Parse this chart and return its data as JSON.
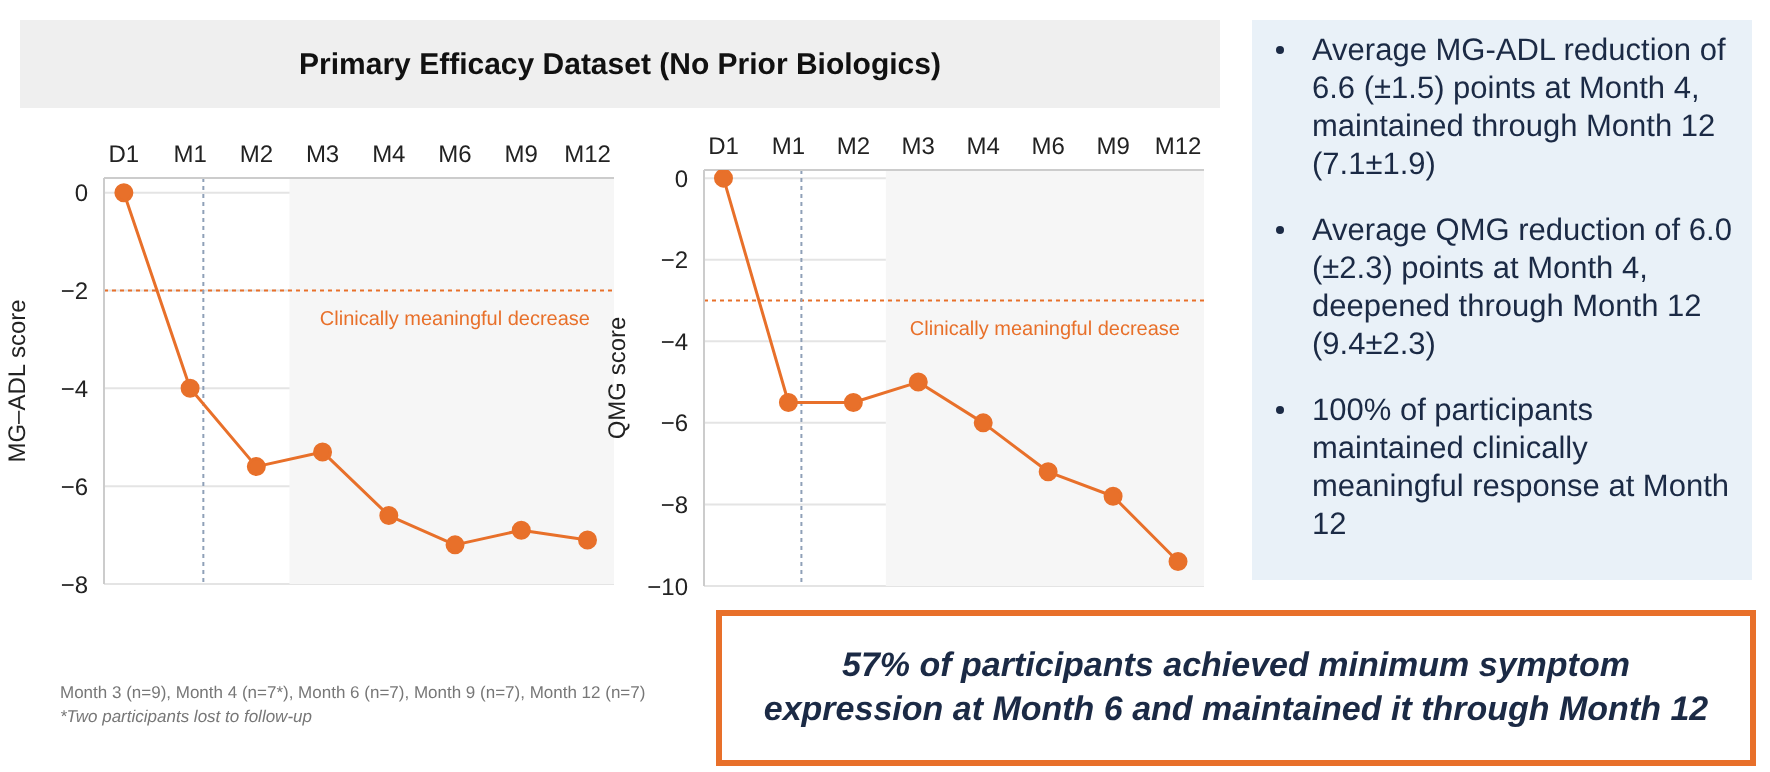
{
  "chart_data": [
    {
      "type": "line",
      "title": "Primary Efficacy Dataset (No Prior Biologics)",
      "ylabel": "MG–ADL score",
      "categories": [
        "D1",
        "M1",
        "M2",
        "M3",
        "M4",
        "M6",
        "M9",
        "M12"
      ],
      "series": [
        {
          "color": "#e8702a",
          "values": [
            0,
            -4.0,
            -5.6,
            -5.3,
            -6.6,
            -7.2,
            -6.9,
            -7.1
          ]
        }
      ],
      "ylim": [
        -8,
        0.3
      ],
      "yticks": [
        -8,
        -6,
        -4,
        -2,
        0
      ],
      "grid": "y",
      "marker": "circle",
      "ref_lines": [
        {
          "axis": "y",
          "value": -2,
          "label": "Clinically meaningful decrease",
          "color": "#e8702a",
          "line_style": "dotted"
        },
        {
          "axis": "x",
          "value": "M1",
          "label": null,
          "color": "#8fa0b8",
          "line_style": "dotted"
        }
      ],
      "bands": [
        {
          "axis": "x",
          "from": "M3",
          "to": "M12",
          "label": null,
          "color": "#f6f6f6"
        }
      ],
      "annotations": [
        "Month 3 (n=9), Month 4 (n=7*), Month 6 (n=7), Month 9 (n=7), Month 12 (n=7)",
        "*Two participants lost to follow-up"
      ]
    },
    {
      "type": "line",
      "ylabel": "QMG score",
      "categories": [
        "D1",
        "M1",
        "M2",
        "M3",
        "M4",
        "M6",
        "M9",
        "M12"
      ],
      "series": [
        {
          "color": "#e8702a",
          "values": [
            0,
            -5.5,
            -5.5,
            -5.0,
            -6.0,
            -7.2,
            -7.8,
            -9.4
          ]
        }
      ],
      "ylim": [
        -10,
        0.2
      ],
      "yticks": [
        -10,
        -8,
        -6,
        -4,
        -2,
        0
      ],
      "grid": "y",
      "marker": "circle",
      "ref_lines": [
        {
          "axis": "y",
          "value": -3,
          "label": "Clinically meaningful decrease",
          "color": "#e8702a",
          "line_style": "dotted"
        },
        {
          "axis": "x",
          "value": "M1",
          "label": null,
          "color": "#8fa0b8",
          "line_style": "dotted"
        }
      ],
      "bands": [
        {
          "axis": "x",
          "from": "M3",
          "to": "M12",
          "label": null,
          "color": "#f6f6f6"
        }
      ]
    },
    {
      "type": "other",
      "annotations": [
        "Average MG-ADL reduction of 6.6 (±1.5) points at Month 4, maintained through Month 12 (7.1±1.9)",
        "Average QMG reduction of 6.0 (±2.3) points at Month 4, deepened through Month 12 (9.4±2.3)",
        "100% of participants maintained clinically meaningful response at Month 12"
      ]
    },
    {
      "type": "other",
      "annotations": [
        "57% of participants achieved minimum symptom expression at Month 6 and maintained it through Month 12"
      ]
    }
  ]
}
